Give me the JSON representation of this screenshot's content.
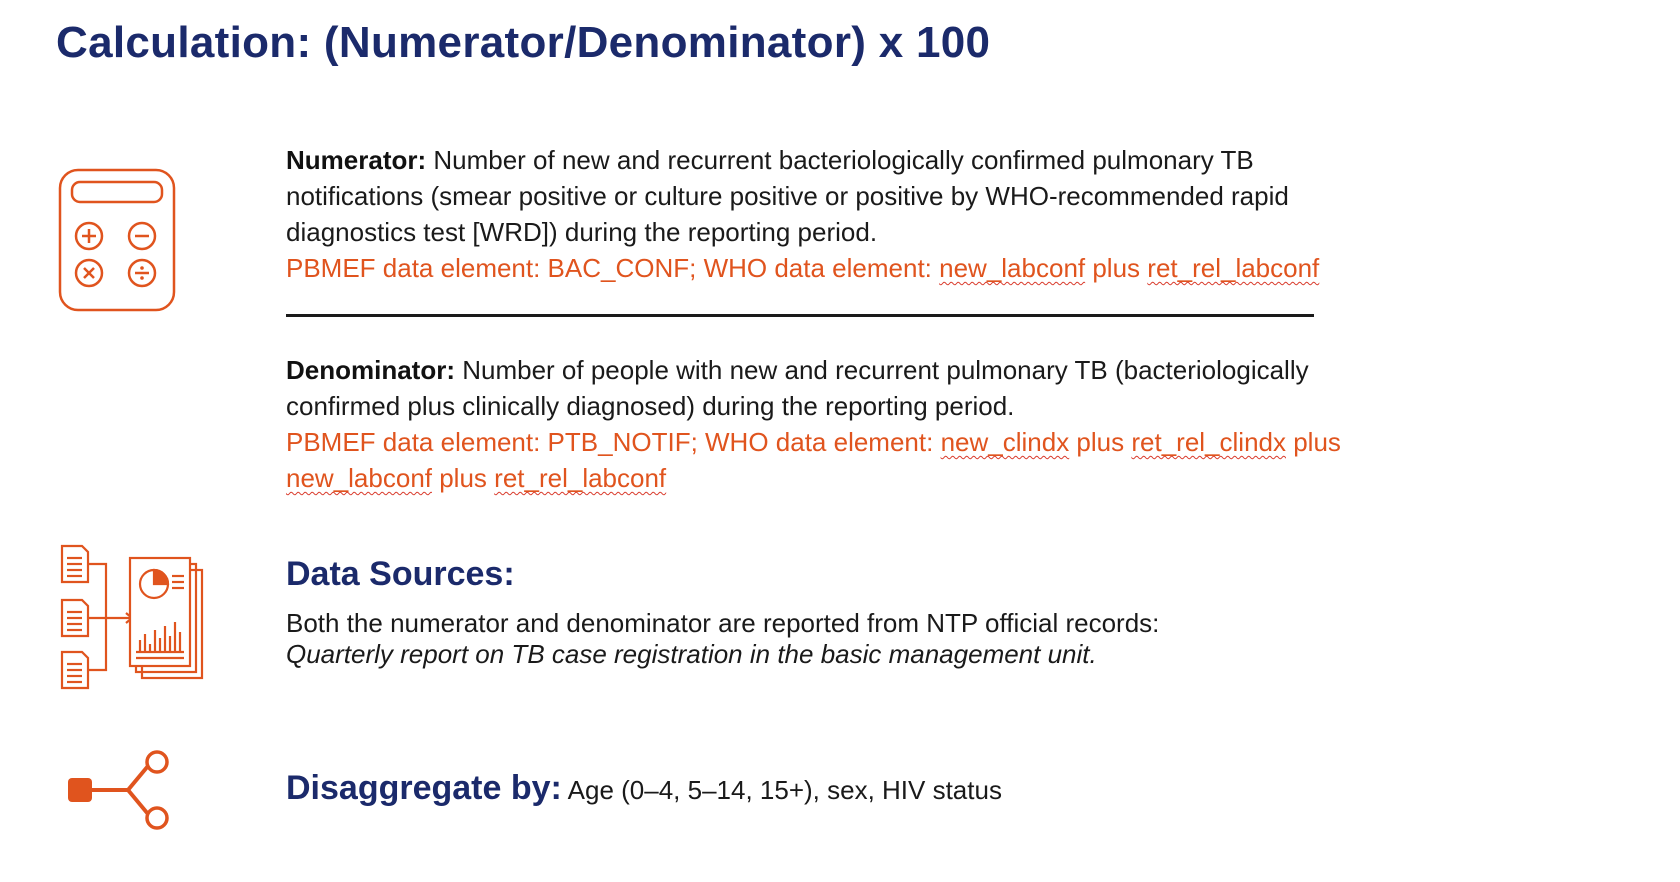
{
  "title": "Calculation: (Numerator/Denominator) x 100",
  "colors": {
    "title_navy": "#1b2a6b",
    "accent_orange": "#e0541e"
  },
  "icons": {
    "numerator": "calculator-icon",
    "data_sources": "reports-chart-icon",
    "disaggregate": "share-branch-icon"
  },
  "numerator": {
    "label": "Numerator:",
    "text_line1": " Number of new and recurrent  bacteriologically confirmed pulmonary TB",
    "text_line2": "notifications (smear positive or culture positive or positive by WHO-recommended rapid",
    "text_line3": "diagnostics test [WRD]) during the reporting period.",
    "data_element_prefix": "PBMEF data element: BAC_CONF; WHO data element: ",
    "data_element_term1": "new_labconf",
    "data_element_mid": " plus ",
    "data_element_term2": "ret_rel_labconf"
  },
  "denominator": {
    "label": "Denominator:",
    "text_line1": " Number of people with new and recurrent pulmonary TB (bacteriologically",
    "text_line2": "confirmed plus clinically diagnosed) during the reporting period.",
    "data_element_prefix": "PBMEF data element: PTB_NOTIF;  WHO data element: ",
    "data_element_term1": "new_clindx",
    "data_element_mid1": " plus ",
    "data_element_term2": "ret_rel_clindx",
    "data_element_mid2": " plus",
    "data_element_term3": "new_labconf",
    "data_element_mid3": " plus ",
    "data_element_term4": "ret_rel_labconf"
  },
  "data_sources": {
    "heading": "Data Sources:",
    "text": "Both the numerator and denominator are reported from NTP official records:",
    "italic_text": "Quarterly report on TB case registration in the basic management unit."
  },
  "disaggregate": {
    "heading": "Disaggregate by:",
    "text": " Age (0–4, 5–14, 15+), sex, HIV status"
  }
}
